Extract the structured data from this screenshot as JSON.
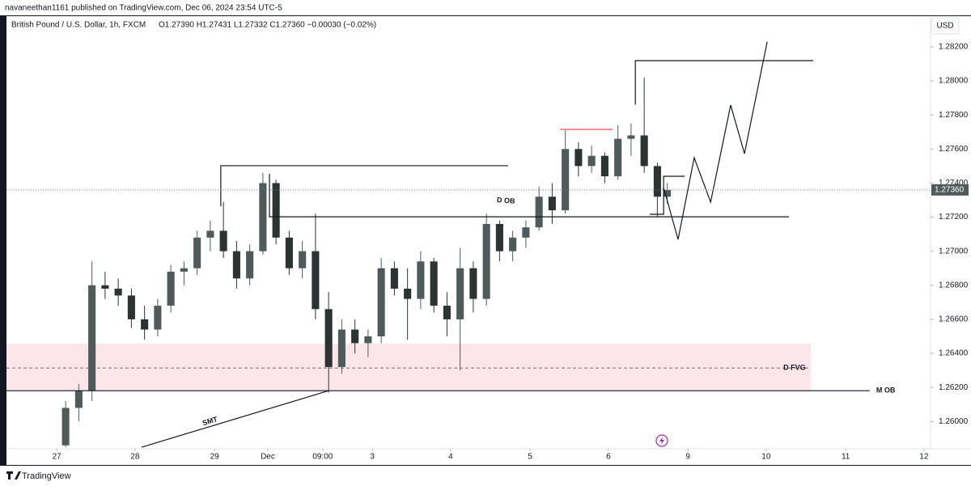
{
  "header": {
    "publisher": "navaneethan1161 published on TradingView.com, Dec 06, 2024 23:54 UTC-5",
    "symbol": "British Pound / U.S. Dollar, 1h, FXCM",
    "ohlc": "O1.27390 H1.27431 L1.27332 C1.27360 −0.00030 (−0.02%)",
    "currency": "USD"
  },
  "footer": {
    "brand": "TradingView"
  },
  "chart_data": {
    "type": "candlestick",
    "up_color": "#4f5b5b",
    "down_color": "#2b3333",
    "xlim": [
      0,
      281.1
    ],
    "ylim": [
      1.2584,
      1.2838
    ],
    "xticks": [
      {
        "value": 15.3,
        "label": "27"
      },
      {
        "value": 39.1,
        "label": "28"
      },
      {
        "value": 63.3,
        "label": "29"
      },
      {
        "value": 79.5,
        "label": "Dec"
      },
      {
        "value": 96.2,
        "label": "09:00"
      },
      {
        "value": 111.3,
        "label": "3"
      },
      {
        "value": 135.1,
        "label": "4"
      },
      {
        "value": 159.3,
        "label": "5"
      },
      {
        "value": 183.1,
        "label": "6"
      },
      {
        "value": 207.3,
        "label": "9"
      },
      {
        "value": 231.1,
        "label": "10"
      },
      {
        "value": 255.3,
        "label": "11"
      },
      {
        "value": 279.1,
        "label": "12"
      }
    ],
    "yticks": [
      {
        "value": 1.26,
        "label": "1.26000"
      },
      {
        "value": 1.262,
        "label": "1.26200"
      },
      {
        "value": 1.264,
        "label": "1.26400"
      },
      {
        "value": 1.266,
        "label": "1.26600"
      },
      {
        "value": 1.268,
        "label": "1.26800"
      },
      {
        "value": 1.27,
        "label": "1.27000"
      },
      {
        "value": 1.272,
        "label": "1.27200"
      },
      {
        "value": 1.274,
        "label": "1.27400"
      },
      {
        "value": 1.276,
        "label": "1.27600"
      },
      {
        "value": 1.278,
        "label": "1.27800"
      },
      {
        "value": 1.28,
        "label": "1.28000"
      },
      {
        "value": 1.282,
        "label": "1.28200"
      }
    ],
    "last_price": {
      "value": 1.2736,
      "label": "1.27360"
    },
    "candles": {
      "x": [
        18,
        22,
        26,
        30,
        34,
        38,
        42,
        46,
        50,
        54,
        58,
        62,
        66,
        70,
        74,
        78,
        82,
        86,
        90,
        94,
        98,
        102,
        106,
        110,
        114,
        118,
        122,
        126,
        130,
        134,
        138,
        142,
        146,
        150,
        154,
        158,
        162,
        166,
        170,
        174,
        178,
        182,
        186,
        190,
        194,
        198,
        201
      ],
      "open": [
        1.2586,
        1.2608,
        1.2618,
        1.268,
        1.2678,
        1.2674,
        1.266,
        1.2654,
        1.2668,
        1.2688,
        1.269,
        1.2708,
        1.2712,
        1.27,
        1.2684,
        1.27,
        1.274,
        1.2708,
        1.269,
        1.27,
        1.2666,
        1.2632,
        1.2654,
        1.2646,
        1.265,
        1.269,
        1.2678,
        1.2672,
        1.2694,
        1.2668,
        1.266,
        1.269,
        1.2672,
        1.2716,
        1.27,
        1.2708,
        1.2714,
        1.2732,
        1.2724,
        1.276,
        1.275,
        1.2756,
        1.2744,
        1.2766,
        1.2768,
        1.275,
        1.2732
      ],
      "high": [
        1.2612,
        1.2622,
        1.2694,
        1.2688,
        1.2684,
        1.2678,
        1.2668,
        1.2672,
        1.2692,
        1.2694,
        1.2712,
        1.2718,
        1.2729,
        1.2706,
        1.2704,
        1.2746,
        1.2742,
        1.2712,
        1.2706,
        1.2722,
        1.2676,
        1.266,
        1.266,
        1.2654,
        1.2696,
        1.2694,
        1.269,
        1.27,
        1.2696,
        1.2676,
        1.2702,
        1.2694,
        1.2722,
        1.2718,
        1.2712,
        1.2718,
        1.2738,
        1.274,
        1.2771,
        1.2764,
        1.2762,
        1.2758,
        1.2774,
        1.2775,
        1.2802,
        1.2752,
        1.274
      ],
      "low": [
        1.2585,
        1.26,
        1.2612,
        1.2672,
        1.2668,
        1.2655,
        1.2648,
        1.265,
        1.2664,
        1.268,
        1.2686,
        1.27,
        1.2696,
        1.2678,
        1.268,
        1.2698,
        1.2704,
        1.2686,
        1.2684,
        1.266,
        1.2617,
        1.2628,
        1.264,
        1.2638,
        1.2646,
        1.2674,
        1.2648,
        1.2666,
        1.2664,
        1.265,
        1.263,
        1.2664,
        1.2668,
        1.2694,
        1.2694,
        1.2702,
        1.2712,
        1.2716,
        1.2722,
        1.2744,
        1.2746,
        1.274,
        1.2742,
        1.2756,
        1.2746,
        1.272,
        1.2728
      ],
      "close": [
        1.2608,
        1.2618,
        1.268,
        1.2678,
        1.2674,
        1.266,
        1.2654,
        1.2668,
        1.2688,
        1.269,
        1.2708,
        1.2712,
        1.27,
        1.2684,
        1.27,
        1.274,
        1.2708,
        1.269,
        1.27,
        1.2666,
        1.2632,
        1.2654,
        1.2646,
        1.265,
        1.269,
        1.2678,
        1.2672,
        1.2694,
        1.2668,
        1.266,
        1.269,
        1.2672,
        1.2716,
        1.27,
        1.2708,
        1.2714,
        1.2732,
        1.2724,
        1.276,
        1.275,
        1.2756,
        1.2744,
        1.2766,
        1.2768,
        1.275,
        1.2732,
        1.2736
      ]
    },
    "zone": {
      "x": [
        0,
        244.7
      ],
      "y": [
        1.26176,
        1.26457
      ],
      "mid": 1.26314,
      "label": "D FVG",
      "color": "#fde6e9"
    },
    "drawings": [
      {
        "x": [
          65.2,
          65.2,
          152.6
        ],
        "y": [
          1.27264,
          1.27502,
          1.27502
        ],
        "color": "#131722"
      },
      {
        "x": [
          80,
          80,
          238
        ],
        "y": [
          1.27454,
          1.27202,
          1.27202
        ],
        "color": "#131722",
        "label": "D OB"
      },
      {
        "x": [
          168.4,
          184.4
        ],
        "y": [
          1.27715,
          1.27715
        ],
        "color": "#f23645"
      },
      {
        "x": [
          191.3,
          191.3,
          245.4
        ],
        "y": [
          1.2786,
          1.28119,
          1.28119
        ],
        "color": "#131722"
      },
      {
        "x": [
          0,
          262.6
        ],
        "y": [
          1.26181,
          1.26181
        ],
        "color": "#131722",
        "label": "M OB"
      },
      {
        "x": [
          41.1,
          98
        ],
        "y": [
          1.25849,
          1.26181
        ],
        "color": "#131722",
        "label": "SMT"
      },
      {
        "x": [
          195.7,
          199.9,
          199.9,
          206.3
        ],
        "y": [
          1.27217,
          1.27217,
          1.2744,
          1.2744
        ],
        "color": "#131722"
      },
      {
        "x": [
          199.9,
          204.3,
          209.2,
          214.2,
          220.3,
          224.5,
          231.4
        ],
        "y": [
          1.27373,
          1.27069,
          1.27549,
          1.27288,
          1.27858,
          1.27573,
          1.28229
        ],
        "color": "#131722"
      }
    ]
  }
}
